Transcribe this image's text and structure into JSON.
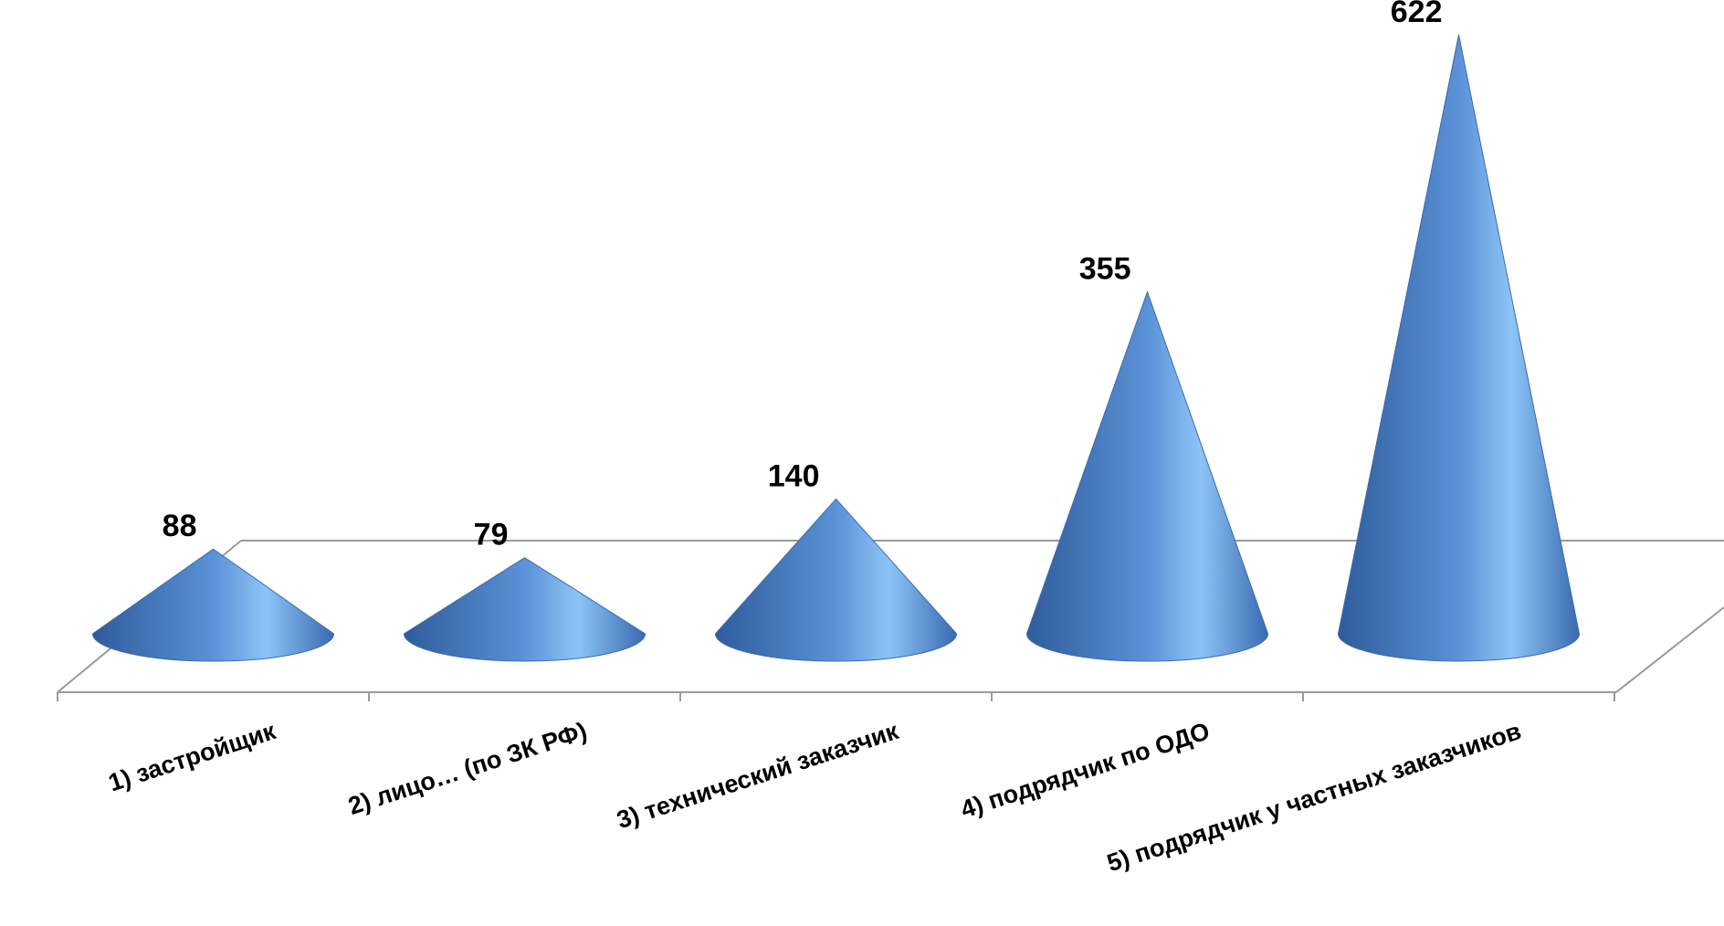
{
  "chart_data": {
    "type": "bar",
    "style": "3d-cone",
    "title": "",
    "xlabel": "",
    "ylabel": "",
    "categories": [
      "1) застройщик",
      "2) лицо… (по ЗК РФ)",
      "3) технический заказчик",
      "4) подрядчик по ОДО",
      "5) подрядчик у частных заказчиков"
    ],
    "values": [
      88,
      79,
      140,
      355,
      622
    ],
    "ylim": [
      0,
      622
    ],
    "grid": false,
    "legend": "none",
    "colors": {
      "cone_light": "#8cc4f8",
      "cone_mid": "#5b91d6",
      "cone_dark": "#2f5c9c",
      "floor_line": "#9a9a9a"
    }
  }
}
